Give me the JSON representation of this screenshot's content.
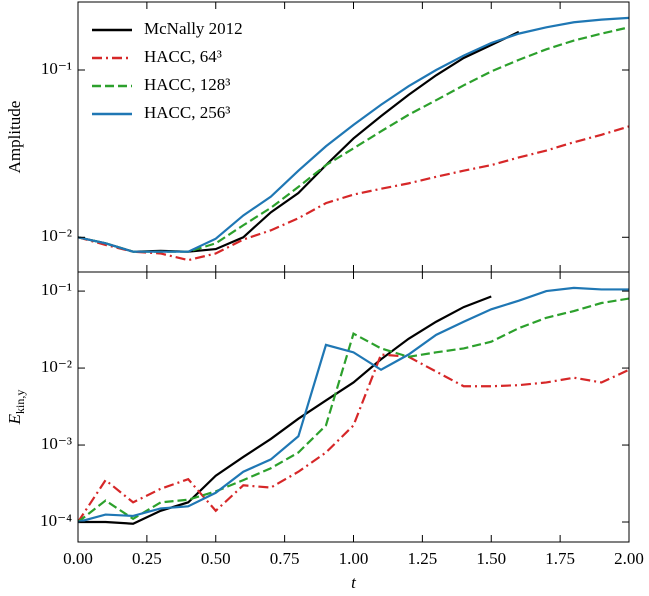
{
  "chart_data": [
    {
      "type": "line",
      "ylabel": "Amplitude",
      "log_y": true,
      "legend": "upper left",
      "xlim": [
        0,
        2
      ],
      "ylim": [
        0.0062,
        0.255
      ],
      "yticks": [
        {
          "value": 0.01,
          "label": "10⁻²"
        },
        {
          "value": 0.1,
          "label": "10⁻¹"
        }
      ],
      "x": [
        0,
        0.1,
        0.2,
        0.3,
        0.4,
        0.5,
        0.6,
        0.7,
        0.8,
        0.9,
        1.0,
        1.1,
        1.2,
        1.3,
        1.4,
        1.5,
        1.6,
        1.7,
        1.8,
        1.9,
        2.0
      ],
      "series": [
        {
          "name": "McNally 2012",
          "color": "#000000",
          "dash": "solid",
          "values": [
            0.01,
            0.0092,
            0.0082,
            0.0083,
            0.0082,
            0.0085,
            0.01,
            0.0141,
            0.0184,
            0.027,
            0.039,
            0.053,
            0.071,
            0.093,
            0.118,
            0.141,
            0.169,
            null,
            null,
            null,
            null
          ]
        },
        {
          "name": "HACC, 64³",
          "color": "#d62728",
          "dash": "dashdot",
          "values": [
            0.01,
            0.009,
            0.0082,
            0.008,
            0.0073,
            0.008,
            0.0097,
            0.011,
            0.013,
            0.016,
            0.018,
            0.0195,
            0.021,
            0.023,
            0.025,
            0.027,
            0.03,
            0.033,
            0.037,
            0.041,
            0.046
          ]
        },
        {
          "name": "HACC, 128³",
          "color": "#2ca02c",
          "dash": "dashed",
          "values": [
            0.01,
            0.0092,
            0.0082,
            0.0082,
            0.0082,
            0.0092,
            0.0118,
            0.015,
            0.02,
            0.027,
            0.034,
            0.043,
            0.054,
            0.066,
            0.081,
            0.098,
            0.115,
            0.133,
            0.15,
            0.165,
            0.18
          ]
        },
        {
          "name": "HACC, 256³",
          "color": "#1f77b4",
          "dash": "solid",
          "values": [
            0.01,
            0.0092,
            0.0082,
            0.0082,
            0.0082,
            0.0098,
            0.0135,
            0.0175,
            0.025,
            0.035,
            0.047,
            0.062,
            0.08,
            0.1,
            0.122,
            0.145,
            0.165,
            0.18,
            0.193,
            0.2,
            0.205
          ]
        }
      ]
    },
    {
      "type": "line",
      "ylabel": {
        "text": "E",
        "sub": "kin,y"
      },
      "xlabel": "t",
      "log_y": true,
      "xlim": [
        0,
        2
      ],
      "ylim": [
        5.5e-05,
        0.177
      ],
      "xticks": [
        {
          "value": 0,
          "label": "0.00"
        },
        {
          "value": 0.25,
          "label": "0.25"
        },
        {
          "value": 0.5,
          "label": "0.50"
        },
        {
          "value": 0.75,
          "label": "0.75"
        },
        {
          "value": 1,
          "label": "1.00"
        },
        {
          "value": 1.25,
          "label": "1.25"
        },
        {
          "value": 1.5,
          "label": "1.50"
        },
        {
          "value": 1.75,
          "label": "1.75"
        },
        {
          "value": 2,
          "label": "2.00"
        }
      ],
      "yticks": [
        {
          "value": 0.0001,
          "label": "10⁻⁴"
        },
        {
          "value": 0.001,
          "label": "10⁻³"
        },
        {
          "value": 0.01,
          "label": "10⁻²"
        },
        {
          "value": 0.1,
          "label": "10⁻¹"
        }
      ],
      "x": [
        0,
        0.1,
        0.2,
        0.3,
        0.4,
        0.5,
        0.6,
        0.7,
        0.8,
        0.9,
        1.0,
        1.1,
        1.2,
        1.3,
        1.4,
        1.5,
        1.6,
        1.7,
        1.8,
        1.9,
        2.0
      ],
      "series": [
        {
          "color": "#000000",
          "dash": "solid",
          "values": [
            0.0001,
            0.0001,
            9.5e-05,
            0.00014,
            0.00018,
            0.0004,
            0.0007,
            0.0012,
            0.0022,
            0.0038,
            0.0065,
            0.013,
            0.024,
            0.04,
            0.062,
            0.085,
            null,
            null,
            null,
            null,
            null
          ]
        },
        {
          "color": "#d62728",
          "dash": "dashdot",
          "values": [
            0.0001,
            0.00035,
            0.00018,
            0.00027,
            0.00036,
            0.00014,
            0.0003,
            0.00028,
            0.00045,
            0.0008,
            0.0018,
            0.015,
            0.014,
            0.009,
            0.0058,
            0.0058,
            0.006,
            0.0065,
            0.0075,
            0.0065,
            0.0095
          ]
        },
        {
          "color": "#2ca02c",
          "dash": "dashed",
          "values": [
            0.0001,
            0.00019,
            0.00011,
            0.00018,
            0.000195,
            0.00025,
            0.00035,
            0.0005,
            0.0008,
            0.0018,
            0.028,
            0.018,
            0.014,
            0.016,
            0.018,
            0.022,
            0.033,
            0.045,
            0.055,
            0.07,
            0.08
          ]
        },
        {
          "color": "#1f77b4",
          "dash": "solid",
          "values": [
            0.0001,
            0.000125,
            0.00012,
            0.00015,
            0.00016,
            0.00024,
            0.00045,
            0.00065,
            0.0013,
            0.02,
            0.016,
            0.0095,
            0.015,
            0.027,
            0.04,
            0.058,
            0.075,
            0.1,
            0.11,
            0.105,
            0.105
          ]
        }
      ]
    }
  ]
}
